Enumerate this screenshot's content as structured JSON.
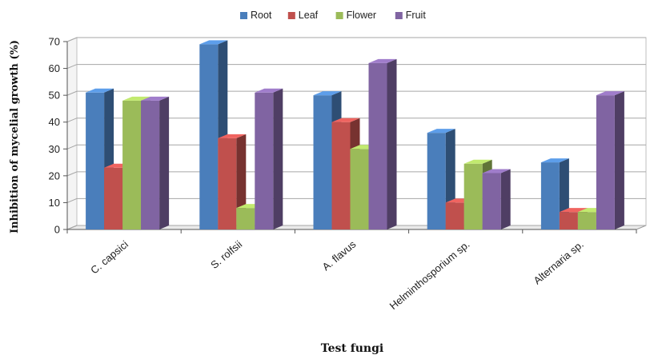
{
  "chart_data": {
    "type": "bar",
    "style": "3d-clustered-column",
    "categories": [
      "C. capsici",
      "S. rolfsii",
      "A. flavus",
      "Helminthosporium sp.",
      "Alternaria sp."
    ],
    "series": [
      {
        "name": "Root",
        "color": "#4a7ebb",
        "values": [
          51,
          69,
          50,
          36,
          25
        ]
      },
      {
        "name": "Leaf",
        "color": "#c0504d",
        "values": [
          23,
          34,
          40,
          10,
          6.5
        ]
      },
      {
        "name": "Flower",
        "color": "#9bbb59",
        "values": [
          48,
          8,
          30,
          24.5,
          6.5
        ]
      },
      {
        "name": "Fruit",
        "color": "#8064a2",
        "values": [
          48,
          51,
          62,
          21,
          50
        ]
      }
    ],
    "xlabel": "Test fungi",
    "ylabel": "Inhibition of mycelial growth (%)",
    "ylim": [
      0,
      70
    ],
    "yticks": [
      0,
      10,
      20,
      30,
      40,
      50,
      60,
      70
    ],
    "grid": true,
    "legend_position": "top"
  }
}
